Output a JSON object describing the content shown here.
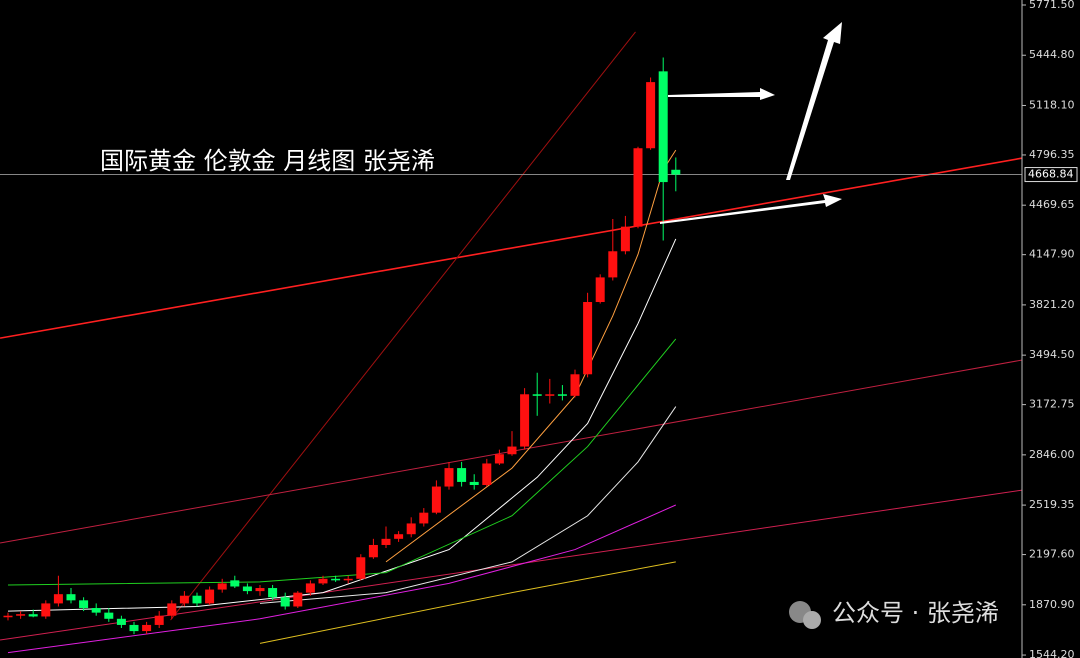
{
  "chart_data": {
    "type": "candlestick",
    "title": "国际黄金 伦敦金 月线图 张尧浠",
    "watermark": "公众号 · 张尧浠",
    "up_color": "#ff1010",
    "down_color": "#00ff66",
    "ylim": [
      1525,
      5804
    ],
    "yticks": [
      {
        "value": 5771.5,
        "label": "5771.50"
      },
      {
        "value": 5444.8,
        "label": "5444.80"
      },
      {
        "value": 5118.1,
        "label": "5118.10"
      },
      4796.35,
      4469.65,
      {
        "value": 4147.9,
        "label": "4147.90"
      },
      {
        "value": 3821.2,
        "label": "3821.20"
      },
      {
        "value": 3494.5,
        "label": "3494.50"
      },
      3172.75,
      {
        "value": 2846,
        "label": "2846.00"
      },
      2519.35,
      {
        "value": 2197.6,
        "label": "2197.60"
      },
      {
        "value": 1870.9,
        "label": "1870.90"
      },
      {
        "value": 1544.2,
        "label": "1544.20"
      }
    ],
    "last_price": 4668.84,
    "open": [
      1790,
      1800,
      1810,
      1795,
      1880,
      1940,
      1900,
      1850,
      1820,
      1780,
      1740,
      1700,
      1740,
      1800,
      1880,
      1930,
      1880,
      1970,
      2030,
      1990,
      1960,
      1980,
      1920,
      1860,
      1950,
      2010,
      2040,
      2030,
      2040,
      2180,
      2260,
      2300,
      2330,
      2400,
      2470,
      2640,
      2760,
      2670,
      2650,
      2790,
      2850,
      2900,
      3240,
      3230,
      3240,
      3230,
      3370,
      3840,
      4000,
      4170,
      4330,
      4840,
      5340,
      4700
    ],
    "high": [
      1820,
      1830,
      1840,
      1900,
      2060,
      1980,
      1920,
      1880,
      1850,
      1800,
      1760,
      1760,
      1830,
      1900,
      1960,
      1950,
      1990,
      2040,
      2060,
      2010,
      2000,
      2000,
      1950,
      1960,
      2030,
      2060,
      2060,
      2060,
      2200,
      2300,
      2380,
      2350,
      2440,
      2500,
      2680,
      2800,
      2800,
      2720,
      2820,
      2880,
      3000,
      3280,
      3380,
      3340,
      3300,
      3400,
      3900,
      4020,
      4380,
      4400,
      4850,
      5300,
      5430,
      4780
    ],
    "low": [
      1770,
      1780,
      1790,
      1780,
      1860,
      1880,
      1830,
      1800,
      1760,
      1720,
      1680,
      1680,
      1720,
      1780,
      1860,
      1860,
      1870,
      1950,
      1980,
      1940,
      1930,
      1900,
      1840,
      1850,
      1930,
      2000,
      2020,
      2010,
      2030,
      2170,
      2240,
      2280,
      2310,
      2380,
      2460,
      2620,
      2640,
      2620,
      2640,
      2780,
      2840,
      2880,
      3100,
      3180,
      3200,
      3220,
      3350,
      3830,
      3980,
      4150,
      4320,
      4830,
      4240,
      4560
    ],
    "close": [
      1800,
      1810,
      1795,
      1880,
      1940,
      1900,
      1850,
      1820,
      1780,
      1740,
      1700,
      1740,
      1800,
      1880,
      1930,
      1880,
      1970,
      2010,
      1990,
      1960,
      1980,
      1920,
      1860,
      1950,
      2010,
      2040,
      2030,
      2040,
      2180,
      2260,
      2300,
      2330,
      2400,
      2470,
      2640,
      2760,
      2670,
      2650,
      2790,
      2850,
      2900,
      3240,
      3230,
      3240,
      3230,
      3370,
      3840,
      4000,
      4170,
      4330,
      4840,
      5270,
      4620,
      4668.84
    ],
    "moving_averages": [
      {
        "color": "#ffa040",
        "x": [
          30,
          40,
          45,
          48,
          50,
          52,
          53
        ],
        "values": [
          2150,
          2760,
          3230,
          3750,
          4150,
          4700,
          4828
        ]
      },
      {
        "color": "#ffffff",
        "x": [
          0,
          15,
          25,
          35,
          42,
          46,
          50,
          53
        ],
        "values": [
          1830,
          1860,
          1950,
          2230,
          2700,
          3050,
          3700,
          4250
        ]
      },
      {
        "color": "#20d020",
        "x": [
          0,
          20,
          30,
          40,
          46,
          50,
          53
        ],
        "values": [
          2000,
          2020,
          2080,
          2450,
          2900,
          3300,
          3600
        ]
      },
      {
        "color": "#e8e8e8",
        "x": [
          20,
          30,
          40,
          46,
          50,
          53
        ],
        "values": [
          1880,
          1950,
          2150,
          2450,
          2800,
          3160
        ]
      },
      {
        "color": "#e020e0",
        "x": [
          0,
          20,
          35,
          45,
          53
        ],
        "values": [
          1560,
          1780,
          2010,
          2230,
          2520
        ]
      },
      {
        "color": "#e0c020",
        "x": [
          20,
          40,
          53
        ],
        "values": [
          1620,
          1950,
          2150
        ]
      }
    ],
    "trendlines": [
      {
        "color": "#ff2020",
        "width": 1.6,
        "x": [
          -0.63,
          80.5
        ],
        "values": [
          3605,
          4776
        ]
      },
      {
        "color": "#a01010",
        "width": 1,
        "x": [
          12.9,
          49.8
        ],
        "values": [
          1772,
          5596
        ]
      },
      {
        "color": "#c02040",
        "width": 1,
        "x": [
          -0.63,
          80.5
        ],
        "values": [
          2273,
          3463
        ]
      },
      {
        "color": "#d02050",
        "width": 1,
        "x": [
          -0.63,
          80.5
        ],
        "values": [
          1642,
          2617
        ]
      }
    ]
  }
}
